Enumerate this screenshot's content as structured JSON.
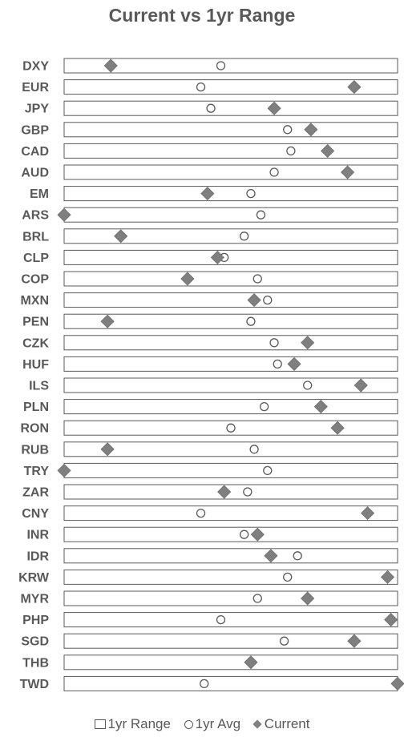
{
  "chart_data": {
    "type": "scatter",
    "title": "Current vs 1yr Range",
    "xlabel": "",
    "ylabel": "",
    "xlim": [
      0,
      100
    ],
    "categories": [
      "DXY",
      "EUR",
      "JPY",
      "GBP",
      "CAD",
      "AUD",
      "EM",
      "ARS",
      "BRL",
      "CLP",
      "COP",
      "MXN",
      "PEN",
      "CZK",
      "HUF",
      "ILS",
      "PLN",
      "RON",
      "RUB",
      "TRY",
      "ZAR",
      "CNY",
      "INR",
      "IDR",
      "KRW",
      "MYR",
      "PHP",
      "SGD",
      "THB",
      "TWD"
    ],
    "series": [
      {
        "name": "1yr Range",
        "marker": "bar",
        "values": [
          [
            0,
            100
          ],
          [
            0,
            100
          ],
          [
            0,
            100
          ],
          [
            0,
            100
          ],
          [
            0,
            100
          ],
          [
            0,
            100
          ],
          [
            0,
            100
          ],
          [
            0,
            100
          ],
          [
            0,
            100
          ],
          [
            0,
            100
          ],
          [
            0,
            100
          ],
          [
            0,
            100
          ],
          [
            0,
            100
          ],
          [
            0,
            100
          ],
          [
            0,
            100
          ],
          [
            0,
            100
          ],
          [
            0,
            100
          ],
          [
            0,
            100
          ],
          [
            0,
            100
          ],
          [
            0,
            100
          ],
          [
            0,
            100
          ],
          [
            0,
            100
          ],
          [
            0,
            100
          ],
          [
            0,
            100
          ],
          [
            0,
            100
          ],
          [
            0,
            100
          ],
          [
            0,
            100
          ],
          [
            0,
            100
          ],
          [
            0,
            100
          ],
          [
            0,
            100
          ]
        ]
      },
      {
        "name": "1yr Avg",
        "marker": "circle",
        "values": [
          47,
          41,
          44,
          67,
          68,
          63,
          56,
          59,
          54,
          48,
          58,
          61,
          56,
          63,
          64,
          73,
          60,
          50,
          57,
          61,
          55,
          41,
          54,
          70,
          67,
          58,
          47,
          66,
          null,
          42
        ]
      },
      {
        "name": "Current",
        "marker": "diamond",
        "values": [
          14,
          87,
          63,
          74,
          79,
          85,
          43,
          0,
          17,
          46,
          37,
          57,
          13,
          73,
          69,
          89,
          77,
          82,
          13,
          0,
          48,
          91,
          58,
          62,
          97,
          73,
          98,
          87,
          56,
          100
        ]
      }
    ],
    "legend_position": "bottom",
    "grid": false,
    "colors": {
      "text": "#595959",
      "range_border": "#595959",
      "avg_border": "#595959",
      "current_fill": "#7f7f7f"
    }
  }
}
